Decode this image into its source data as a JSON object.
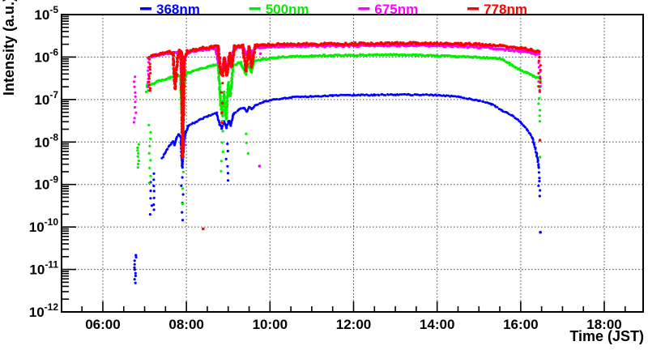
{
  "chart_data": {
    "type": "scatter",
    "title": "",
    "xlabel": "Time (JST)",
    "ylabel": "Intensity (a.u.)",
    "x_axis": {
      "unit": "time-of-day JST",
      "min_hour": 5.012,
      "max_hour": 18.93,
      "major_ticks": [
        {
          "hour": 6,
          "label": "06:00"
        },
        {
          "hour": 8,
          "label": "08:00"
        },
        {
          "hour": 10,
          "label": "10:00"
        },
        {
          "hour": 12,
          "label": "12:00"
        },
        {
          "hour": 14,
          "label": "14:00"
        },
        {
          "hour": 16,
          "label": "16:00"
        },
        {
          "hour": 18,
          "label": "18:00"
        }
      ],
      "minor_tick_step_hours": 0.5
    },
    "y_axis": {
      "scale": "log",
      "top_exponent": -5,
      "bottom_exponent": -12,
      "decade_exponents": [
        -5,
        -6,
        -7,
        -8,
        -9,
        -10,
        -11,
        -12
      ]
    },
    "grid": {
      "style": "dotted",
      "horizontal_at_exponents": [
        -6,
        -7,
        -8,
        -9,
        -10,
        -11
      ],
      "vertical_at_hours": [
        6,
        8,
        10,
        12,
        14,
        16,
        18
      ]
    },
    "legend": {
      "position": "top",
      "entries": [
        {
          "label": "368nm",
          "color": "#0000ff"
        },
        {
          "label": "500nm",
          "color": "#00ee00"
        },
        {
          "label": "675nm",
          "color": "#ff00ff"
        },
        {
          "label": "778nm",
          "color": "#ff0000"
        }
      ]
    },
    "series": [
      {
        "name": "368nm",
        "color": "#0000ff",
        "path": [
          [
            7.42,
            4.2e-09
          ],
          [
            7.55,
            7e-09
          ],
          [
            7.68,
            1.05e-08
          ],
          [
            7.72,
            8.5e-09
          ],
          [
            7.76,
            1.2e-08
          ],
          [
            7.82,
            1.5e-08
          ],
          [
            7.86,
            1.35e-08
          ],
          [
            7.9,
            2.5e-09
          ],
          [
            7.94,
            9e-09
          ],
          [
            7.99,
            1.8e-08
          ],
          [
            8.05,
            2.4e-08
          ],
          [
            8.25,
            3.1e-08
          ],
          [
            8.5,
            4e-08
          ],
          [
            8.72,
            4.8e-08
          ],
          [
            8.8,
            2.6e-08
          ],
          [
            8.85,
            2.1e-08
          ],
          [
            8.9,
            3e-08
          ],
          [
            8.96,
            2.2e-08
          ],
          [
            9.02,
            3.2e-08
          ],
          [
            9.06,
            2.4e-08
          ],
          [
            9.12,
            4.5e-08
          ],
          [
            9.25,
            5.8e-08
          ],
          [
            9.38,
            6.3e-08
          ],
          [
            9.44,
            5.2e-08
          ],
          [
            9.5,
            6.6e-08
          ],
          [
            9.56,
            6e-08
          ],
          [
            9.65,
            7.3e-08
          ],
          [
            9.85,
            8.9e-08
          ],
          [
            10.1,
            1e-07
          ],
          [
            10.5,
            1.12e-07
          ],
          [
            11.0,
            1.2e-07
          ],
          [
            11.5,
            1.24e-07
          ],
          [
            12.0,
            1.26e-07
          ],
          [
            12.5,
            1.29e-07
          ],
          [
            13.0,
            1.3e-07
          ],
          [
            13.5,
            1.3e-07
          ],
          [
            14.0,
            1.26e-07
          ],
          [
            14.5,
            1.16e-07
          ],
          [
            15.0,
            9.5e-08
          ],
          [
            15.3,
            7.8e-08
          ],
          [
            15.55,
            5.6e-08
          ],
          [
            15.8,
            4.2e-08
          ],
          [
            16.0,
            2.9e-08
          ],
          [
            16.15,
            2e-08
          ],
          [
            16.28,
            1.2e-08
          ],
          [
            16.38,
            5.5e-09
          ],
          [
            16.43,
            2.6e-09
          ]
        ],
        "drops": [
          [
            6.78,
            2.2e-11,
            5e-12,
            10
          ],
          [
            7.15,
            1.1e-09,
            2e-10,
            5
          ],
          [
            7.21,
            1.8e-09,
            2.5e-10,
            7
          ],
          [
            7.9,
            1.5e-09,
            1.4e-10,
            6
          ],
          [
            8.97,
            9e-09,
            1.2e-09,
            6
          ],
          [
            16.44,
            2.4e-09,
            5.5e-10,
            7
          ]
        ],
        "dots": [
          [
            16.47,
            7.5e-11
          ]
        ]
      },
      {
        "name": "500nm",
        "color": "#00ee00",
        "path": [
          [
            7.15,
            2.2e-07
          ],
          [
            7.35,
            2.8e-07
          ],
          [
            7.6,
            3.2e-07
          ],
          [
            7.8,
            3.8e-07
          ],
          [
            7.86,
            3.4e-07
          ],
          [
            7.9,
            3e-08
          ],
          [
            7.94,
            2e-07
          ],
          [
            8.0,
            4.2e-07
          ],
          [
            8.3,
            5.2e-07
          ],
          [
            8.6,
            6.2e-07
          ],
          [
            8.76,
            6.8e-07
          ],
          [
            8.82,
            8e-08
          ],
          [
            8.86,
            4e-08
          ],
          [
            8.9,
            1.5e-07
          ],
          [
            8.95,
            3.5e-08
          ],
          [
            9.0,
            2.5e-07
          ],
          [
            9.05,
            1.2e-07
          ],
          [
            9.12,
            6.5e-07
          ],
          [
            9.3,
            7.4e-07
          ],
          [
            9.42,
            4e-07
          ],
          [
            9.48,
            7e-07
          ],
          [
            9.55,
            4.5e-07
          ],
          [
            9.62,
            7.8e-07
          ],
          [
            9.8,
            8.8e-07
          ],
          [
            10.1,
            9.6e-07
          ],
          [
            10.5,
            1.03e-06
          ],
          [
            11.0,
            1.07e-06
          ],
          [
            11.5,
            1.09e-06
          ],
          [
            12.0,
            1.1e-06
          ],
          [
            12.5,
            1.12e-06
          ],
          [
            13.0,
            1.12e-06
          ],
          [
            13.5,
            1.1e-06
          ],
          [
            14.0,
            1.07e-06
          ],
          [
            14.5,
            1.02e-06
          ],
          [
            15.0,
            9.9e-07
          ],
          [
            15.5,
            9.3e-07
          ],
          [
            15.75,
            6.8e-07
          ],
          [
            16.0,
            4.9e-07
          ],
          [
            16.15,
            4.2e-07
          ],
          [
            16.3,
            3.6e-07
          ],
          [
            16.44,
            3.2e-07
          ]
        ],
        "drops": [
          [
            6.84,
            9e-09,
            2.6e-09,
            8
          ],
          [
            7.06,
            2.2e-07,
            1.5e-07,
            4
          ],
          [
            7.12,
            2.6e-08,
            1.1e-09,
            9
          ],
          [
            7.91,
            2.5e-08,
            3.5e-10,
            6
          ],
          [
            8.85,
            3e-08,
            2e-09,
            6
          ],
          [
            9.45,
            1.6e-08,
            5.5e-09,
            3
          ],
          [
            16.45,
            2.8e-07,
            3e-08,
            8
          ]
        ],
        "dots": [
          [
            16.46,
            4.4e-09
          ]
        ]
      },
      {
        "name": "675nm",
        "color": "#ff00ff",
        "path": [
          [
            7.17,
            1.05e-06
          ],
          [
            7.45,
            1.2e-06
          ],
          [
            7.7,
            1.28e-06
          ],
          [
            7.86,
            1.3e-06
          ],
          [
            7.9,
            1.8e-07
          ],
          [
            7.95,
            9e-07
          ],
          [
            8.05,
            1.3e-06
          ],
          [
            8.4,
            1.5e-06
          ],
          [
            8.7,
            1.58e-06
          ],
          [
            8.8,
            5.5e-07
          ],
          [
            8.86,
            4.5e-07
          ],
          [
            8.9,
            9e-07
          ],
          [
            8.96,
            4.8e-07
          ],
          [
            9.03,
            1e-06
          ],
          [
            9.08,
            6e-07
          ],
          [
            9.14,
            1.6e-06
          ],
          [
            9.35,
            1.68e-06
          ],
          [
            9.42,
            1.15e-06
          ],
          [
            9.5,
            1.6e-06
          ],
          [
            9.56,
            1.25e-06
          ],
          [
            9.65,
            1.7e-06
          ],
          [
            10.0,
            1.75e-06
          ],
          [
            10.5,
            1.8e-06
          ],
          [
            11.0,
            1.82e-06
          ],
          [
            12.0,
            1.85e-06
          ],
          [
            13.0,
            1.88e-06
          ],
          [
            13.5,
            1.88e-06
          ],
          [
            14.0,
            1.85e-06
          ],
          [
            14.5,
            1.8e-06
          ],
          [
            15.0,
            1.72e-06
          ],
          [
            15.5,
            1.55e-06
          ],
          [
            16.0,
            1.38e-06
          ],
          [
            16.25,
            1.25e-06
          ],
          [
            16.43,
            1.15e-06
          ]
        ],
        "drops": [
          [
            6.77,
            3.4e-07,
            2.8e-08,
            10
          ],
          [
            7.1,
            9e-07,
            1.6e-07,
            9
          ],
          [
            7.91,
            1.6e-07,
            1.2e-08,
            4
          ],
          [
            16.45,
            1e-06,
            1.5e-07,
            8
          ]
        ],
        "dots": [
          [
            9.77,
            1.2e-06
          ],
          [
            9.75,
            2.7e-09
          ],
          [
            7.96,
            8.5e-09
          ]
        ]
      },
      {
        "name": "778nm",
        "color": "#ff0000",
        "path": [
          [
            7.17,
            1.05e-06
          ],
          [
            7.45,
            1.25e-06
          ],
          [
            7.6,
            1.3e-06
          ],
          [
            7.68,
            1.22e-06
          ],
          [
            7.73,
            1.8e-07
          ],
          [
            7.78,
            8e-07
          ],
          [
            7.83,
            1.38e-06
          ],
          [
            7.88,
            1.3e-06
          ],
          [
            7.91,
            4.5e-09
          ],
          [
            7.95,
            8e-07
          ],
          [
            8.02,
            1.35e-06
          ],
          [
            8.35,
            1.6e-06
          ],
          [
            8.6,
            1.72e-06
          ],
          [
            8.76,
            1.78e-06
          ],
          [
            8.82,
            4.5e-07
          ],
          [
            8.87,
            3.8e-07
          ],
          [
            8.91,
            9.5e-07
          ],
          [
            8.97,
            3.6e-07
          ],
          [
            9.04,
            1.2e-06
          ],
          [
            9.09,
            6e-07
          ],
          [
            9.15,
            1.75e-06
          ],
          [
            9.35,
            1.85e-06
          ],
          [
            9.42,
            5e-07
          ],
          [
            9.5,
            1.7e-06
          ],
          [
            9.56,
            6e-07
          ],
          [
            9.65,
            1.9e-06
          ],
          [
            10.0,
            1.95e-06
          ],
          [
            10.5,
            2e-06
          ],
          [
            11.0,
            2.02e-06
          ],
          [
            12.0,
            2.05e-06
          ],
          [
            13.0,
            2.1e-06
          ],
          [
            13.5,
            2.1e-06
          ],
          [
            14.0,
            2.08e-06
          ],
          [
            14.5,
            2.05e-06
          ],
          [
            15.0,
            1.98e-06
          ],
          [
            15.5,
            1.85e-06
          ],
          [
            16.0,
            1.65e-06
          ],
          [
            16.25,
            1.5e-06
          ],
          [
            16.43,
            1.35e-06
          ]
        ],
        "drops": [
          [
            7.12,
            1e-06,
            1.6e-07,
            12
          ],
          [
            7.9,
            1e-06,
            8e-09,
            8
          ],
          [
            8.85,
            2.5e-07,
            2.8e-08,
            5
          ],
          [
            16.45,
            1.3e-06,
            1.6e-07,
            10
          ]
        ],
        "dots": [
          [
            16.46,
            1.1e-08
          ],
          [
            8.4,
            9e-11
          ]
        ]
      }
    ]
  }
}
